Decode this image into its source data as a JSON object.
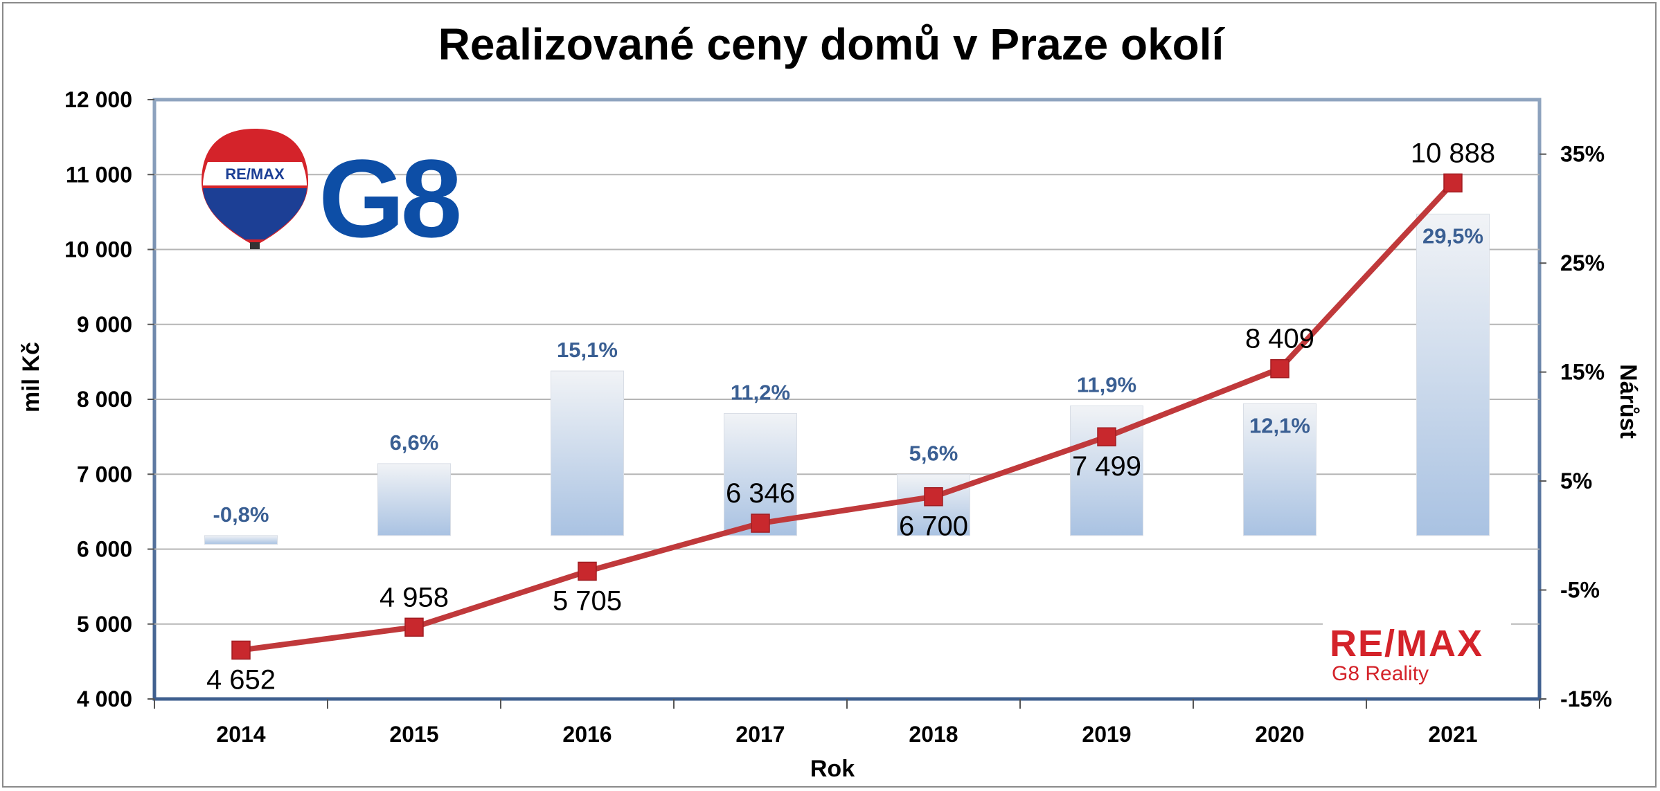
{
  "chart_data": {
    "type": "bar+line",
    "title": "Realizované ceny domů v Praze okolí",
    "xlabel": "Rok",
    "ylabel_left": "mil Kč",
    "ylabel_right": "Nárůst",
    "categories": [
      "2014",
      "2015",
      "2016",
      "2017",
      "2018",
      "2019",
      "2020",
      "2021"
    ],
    "left_axis": {
      "min": 4000,
      "max": 12000,
      "step": 1000,
      "tick_labels": [
        "4 000",
        "5 000",
        "6 000",
        "7 000",
        "8 000",
        "9 000",
        "10 000",
        "11 000",
        "12 000"
      ]
    },
    "right_axis": {
      "min": -15,
      "max": 40,
      "tick_values": [
        -15,
        -5,
        5,
        15,
        25,
        35
      ],
      "tick_labels": [
        "-15%",
        "-5%",
        "5%",
        "15%",
        "25%",
        "35%"
      ]
    },
    "series": [
      {
        "name": "Realizované ceny",
        "type": "line",
        "axis": "left",
        "color": "#c0393b",
        "values": [
          4652,
          4958,
          5705,
          6346,
          6700,
          7499,
          8409,
          10888
        ],
        "labels": [
          "4 652",
          "4 958",
          "5 705",
          "6 346",
          "6 700",
          "7 499",
          "8 409",
          "10 888"
        ],
        "label_positions": [
          "below",
          "above",
          "below",
          "above",
          "below",
          "below",
          "above",
          "above"
        ]
      },
      {
        "name": "Nárůst",
        "type": "bar",
        "axis": "right",
        "color": "#a9c2e2",
        "values": [
          -0.8,
          6.6,
          15.1,
          11.2,
          5.6,
          11.9,
          12.1,
          29.5
        ],
        "labels": [
          "-0,8%",
          "6,6%",
          "15,1%",
          "11,2%",
          "5,6%",
          "11,9%",
          "12,1%",
          "29,5%"
        ],
        "label_inside": [
          false,
          false,
          false,
          false,
          false,
          false,
          true,
          true
        ]
      }
    ],
    "grid": true
  },
  "logos": {
    "balloon_text": "RE/MAX",
    "g8_text": "G8",
    "brand_text": "RE/MAX",
    "brand_sub": "G8 Reality"
  }
}
